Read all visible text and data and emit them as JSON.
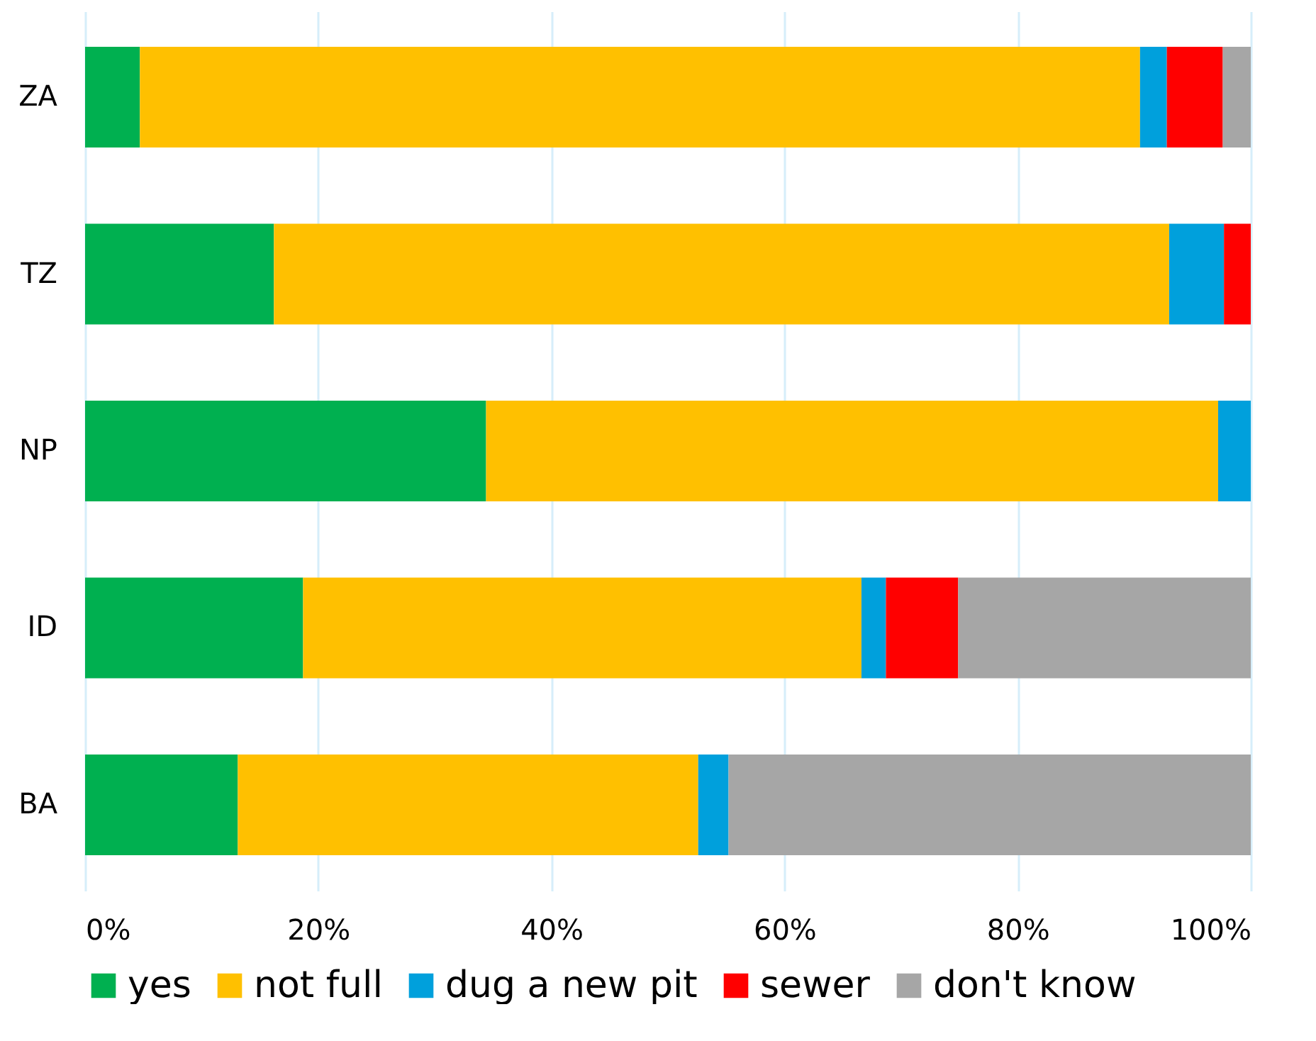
{
  "chart_data": {
    "type": "bar",
    "orientation": "horizontal",
    "stacked": true,
    "categories": [
      "ZA",
      "TZ",
      "NP",
      "ID",
      "BA"
    ],
    "series": [
      {
        "name": "yes",
        "color": "#00b050",
        "values": [
          4.7,
          16.2,
          34.4,
          18.7,
          13.1
        ]
      },
      {
        "name": "not full",
        "color": "#ffc000",
        "values": [
          85.8,
          76.8,
          62.8,
          47.9,
          39.5
        ]
      },
      {
        "name": "dug a new pit",
        "color": "#00a0dc",
        "values": [
          2.3,
          4.7,
          2.8,
          2.1,
          2.6
        ]
      },
      {
        "name": "sewer",
        "color": "#ff0000",
        "values": [
          4.8,
          2.3,
          0,
          6.2,
          0
        ]
      },
      {
        "name": "don't know",
        "color": "#a6a6a6",
        "values": [
          2.4,
          0,
          0,
          25.1,
          44.8
        ]
      }
    ],
    "xlim": [
      0,
      100
    ],
    "xticks": [
      {
        "value": 0,
        "label": "0%"
      },
      {
        "value": 20,
        "label": "20%"
      },
      {
        "value": 40,
        "label": "40%"
      },
      {
        "value": 60,
        "label": "60%"
      },
      {
        "value": 80,
        "label": "80%"
      },
      {
        "value": 100,
        "label": "100%"
      }
    ],
    "grid": "x",
    "legend": "bottom"
  }
}
